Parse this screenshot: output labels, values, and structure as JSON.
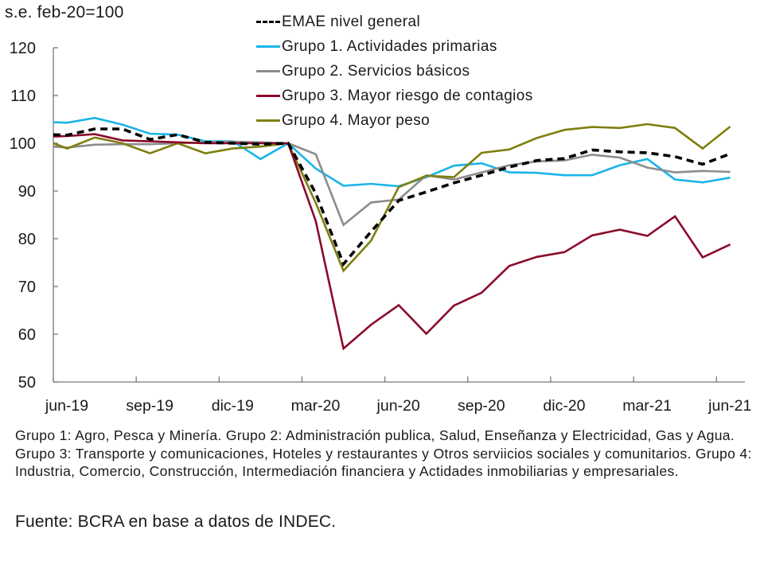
{
  "chart_data": {
    "type": "line",
    "title": "",
    "ylabel": "s.e. feb-20=100",
    "xlabel": "",
    "ylim": [
      50,
      120
    ],
    "yticks": [
      50,
      60,
      70,
      80,
      90,
      100,
      110,
      120
    ],
    "grid": false,
    "legend_position": "top-center",
    "x_unit": "months since jun-19 tick",
    "xlim": [
      0,
      25.2
    ],
    "xticks": [
      {
        "pos": 0,
        "label": "jun-19"
      },
      {
        "pos": 3,
        "label": "sep-19"
      },
      {
        "pos": 6,
        "label": "dic-19"
      },
      {
        "pos": 9,
        "label": "mar-20"
      },
      {
        "pos": 12,
        "label": "jun-20"
      },
      {
        "pos": 15,
        "label": "sep-20"
      },
      {
        "pos": 18,
        "label": "dic-20"
      },
      {
        "pos": 21,
        "label": "mar-21"
      },
      {
        "pos": 24,
        "label": "jun-21"
      }
    ],
    "x": [
      0,
      0.5,
      1.5,
      2.5,
      3.5,
      4.5,
      5.5,
      6.5,
      7.5,
      8.5,
      9.5,
      10.5,
      11.5,
      12.5,
      13.5,
      14.5,
      15.5,
      16.5,
      17.5,
      18.5,
      19.5,
      20.5,
      21.5,
      22.5,
      23.5,
      24.5
    ],
    "series": [
      {
        "name": "EMAE nivel general",
        "color": "#000000",
        "dashed": true,
        "values": [
          101.8,
          101.7,
          103.0,
          103.0,
          100.8,
          101.8,
          100.2,
          100.0,
          99.8,
          100.0,
          89.5,
          74.7,
          81.5,
          88.0,
          89.8,
          91.7,
          93.3,
          95.0,
          96.4,
          96.8,
          98.6,
          98.2,
          98.0,
          97.2,
          95.6,
          97.8
        ]
      },
      {
        "name": "Grupo 1. Actividades primarias",
        "color": "#1CB4E8",
        "dashed": false,
        "values": [
          104.4,
          104.3,
          105.3,
          103.9,
          102.0,
          101.8,
          100.4,
          100.4,
          96.7,
          100.0,
          94.7,
          91.1,
          91.5,
          91.0,
          92.9,
          95.3,
          95.8,
          93.9,
          93.8,
          93.3,
          93.3,
          95.4,
          96.7,
          92.4,
          91.8,
          92.8
        ]
      },
      {
        "name": "Grupo 2. Servicios básicos",
        "color": "#8C8C8C",
        "dashed": false,
        "values": [
          99.3,
          99.1,
          99.7,
          99.8,
          99.8,
          100.0,
          100.2,
          100.3,
          100.2,
          100.0,
          97.7,
          82.9,
          87.6,
          88.2,
          93.3,
          92.4,
          93.9,
          95.4,
          96.2,
          96.4,
          97.6,
          97.0,
          94.9,
          93.9,
          94.2,
          94.0
        ]
      },
      {
        "name": "Grupo 3. Mayor riesgo de contagios",
        "color": "#8B0A2A",
        "dashed": false,
        "values": [
          101.4,
          101.5,
          101.9,
          100.6,
          100.4,
          100.2,
          100.0,
          100.0,
          100.0,
          100.0,
          83.7,
          57.0,
          62.0,
          66.1,
          60.1,
          66.0,
          68.7,
          74.3,
          76.2,
          77.2,
          80.7,
          81.9,
          80.6,
          84.7,
          76.1,
          78.8
        ]
      },
      {
        "name": "Grupo 4. Mayor peso",
        "color": "#7F7F0F",
        "dashed": false,
        "values": [
          100.0,
          98.9,
          101.2,
          100.0,
          97.9,
          100.0,
          97.9,
          98.9,
          99.3,
          100.0,
          87.5,
          73.3,
          79.6,
          90.8,
          93.2,
          92.9,
          98.0,
          98.7,
          101.1,
          102.8,
          103.4,
          103.2,
          104.0,
          103.2,
          98.9,
          103.5
        ]
      }
    ]
  },
  "notes": "Grupo 1: Agro, Pesca y Minería. Grupo 2: Administración publica, Salud, Enseñanza y Electricidad, Gas y Agua. Grupo 3: Transporte y comunicaciones, Hoteles y restaurantes y Otros serviicios sociales y comunitarios. Grupo 4: Industria, Comercio, Construcción, Intermediación financiera y Actidades inmobiliarias y empresariales.",
  "source": "Fuente: BCRA en base a datos de INDEC."
}
